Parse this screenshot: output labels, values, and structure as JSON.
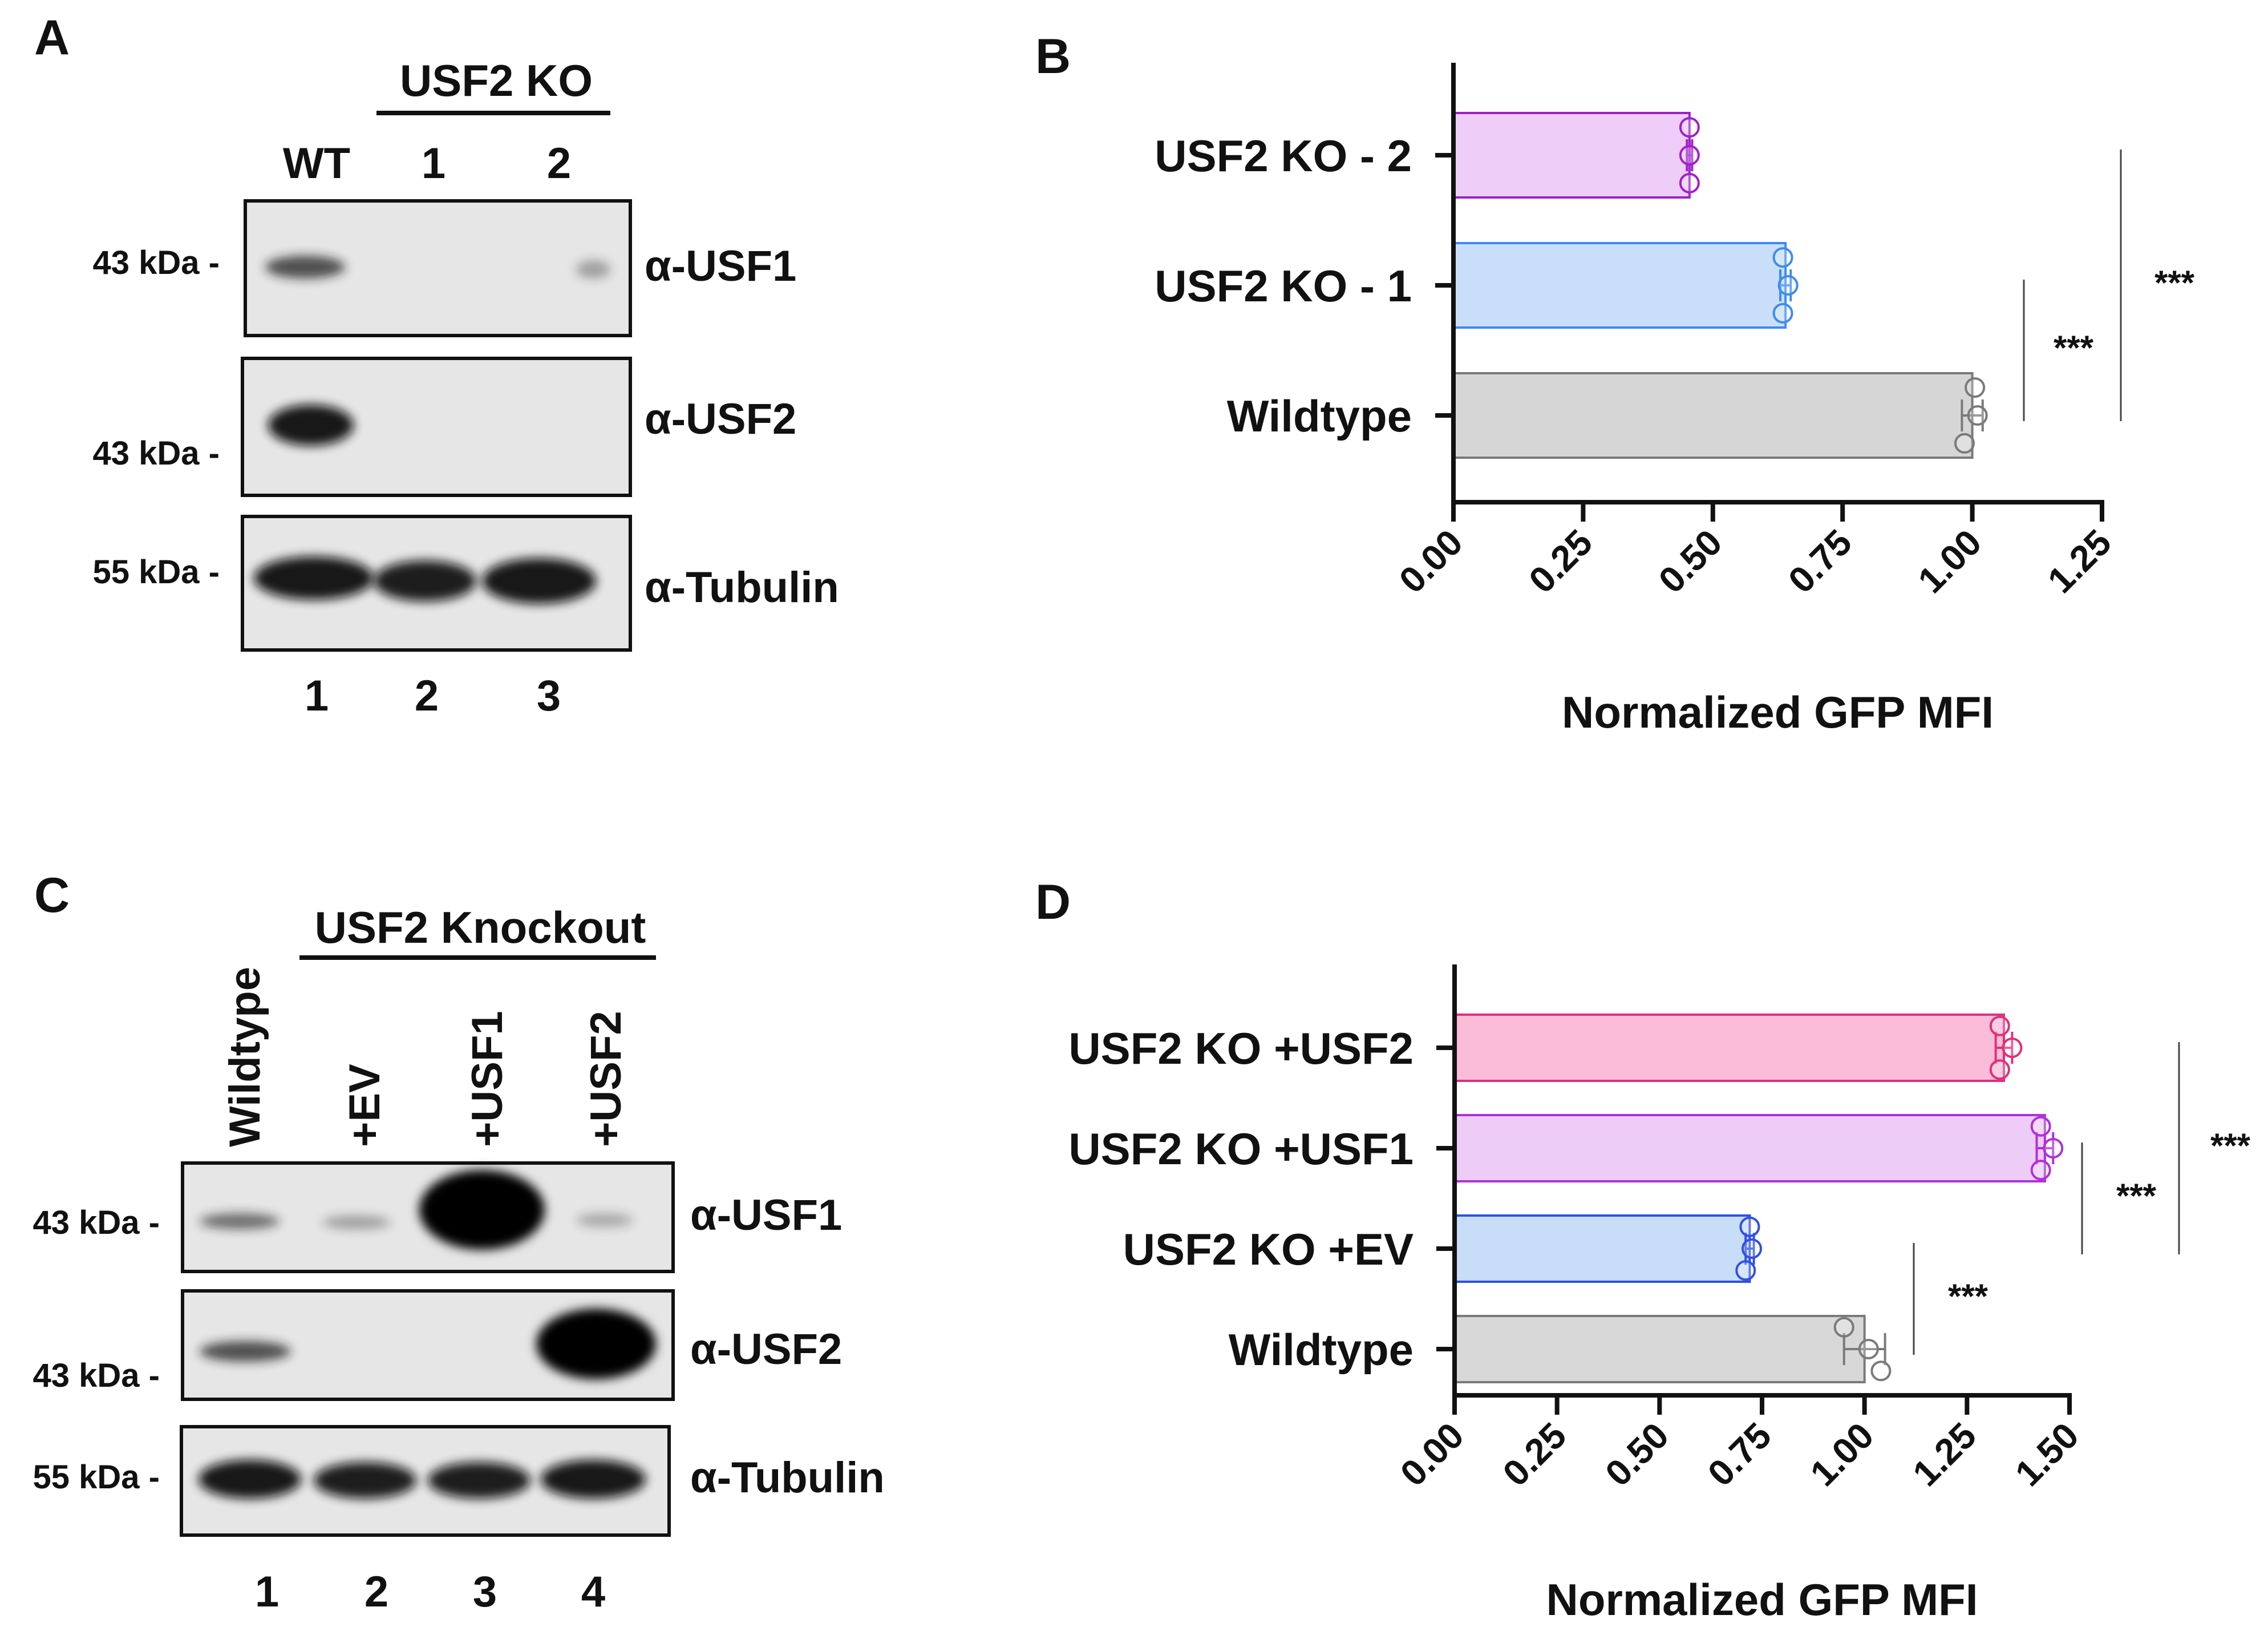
{
  "panel_a": {
    "letter": "A",
    "group_header": "USF2 KO",
    "column_labels": [
      "WT",
      "1",
      "2"
    ],
    "lane_numbers": [
      "1",
      "2",
      "3"
    ],
    "blots": [
      {
        "antibody": "α-USF1",
        "marker": "43 kDa -",
        "band_intensity": [
          0.55,
          0.0,
          0.2
        ]
      },
      {
        "antibody": "α-USF2",
        "marker": "43 kDa -",
        "band_intensity": [
          1.0,
          0.0,
          0.0
        ]
      },
      {
        "antibody": "α-Tubulin",
        "marker": "55 kDa -",
        "band_intensity": [
          1.0,
          0.9,
          1.0
        ]
      }
    ]
  },
  "panel_c": {
    "letter": "C",
    "group_header": "USF2 Knockout",
    "column_labels": [
      "Wildtype",
      "+EV",
      "+USF1",
      "+USF2"
    ],
    "lane_numbers": [
      "1",
      "2",
      "3",
      "4"
    ],
    "blots": [
      {
        "antibody": "α-USF1",
        "marker": "43 kDa -",
        "band_intensity": [
          0.5,
          0.3,
          1.0,
          0.2
        ]
      },
      {
        "antibody": "α-USF2",
        "marker": "43 kDa -",
        "band_intensity": [
          0.6,
          0.0,
          0.0,
          1.0
        ]
      },
      {
        "antibody": "α-Tubulin",
        "marker": "55 kDa -",
        "band_intensity": [
          1.0,
          1.0,
          1.0,
          1.0
        ]
      }
    ]
  },
  "chart_data": [
    {
      "panel": "B",
      "type": "bar",
      "orientation": "horizontal",
      "categories": [
        "USF2 KO - 2",
        "USF2 KO - 1",
        "Wildtype"
      ],
      "values": [
        0.455,
        0.64,
        1.0
      ],
      "errors": [
        0.005,
        0.01,
        0.02
      ],
      "points": [
        [
          0.455,
          0.455,
          0.455
        ],
        [
          0.635,
          0.645,
          0.635
        ],
        [
          1.005,
          1.01,
          0.985
        ]
      ],
      "colors": [
        "#a020c8",
        "#3d8bf0",
        "#7a7a7a"
      ],
      "fills": [
        "#eecdf8",
        "#c9dff9",
        "#d6d6d6"
      ],
      "xlabel": "Normalized GFP MFI",
      "xlim": [
        0,
        1.25
      ],
      "xticks": [
        "0.00",
        "0.25",
        "0.50",
        "0.75",
        "1.00",
        "1.25"
      ],
      "significance": [
        {
          "from": "USF2 KO - 1",
          "to": "Wildtype",
          "label": "***"
        },
        {
          "from": "USF2 KO - 2",
          "to": "Wildtype",
          "label": "***"
        }
      ]
    },
    {
      "panel": "D",
      "type": "bar",
      "orientation": "horizontal",
      "categories": [
        "USF2 KO +USF2",
        "USF2 KO +USF1",
        "USF2 KO +EV",
        "Wildtype"
      ],
      "values": [
        1.34,
        1.44,
        0.72,
        1.0
      ],
      "errors": [
        0.02,
        0.02,
        0.01,
        0.05
      ],
      "points": [
        [
          1.33,
          1.36,
          1.33
        ],
        [
          1.43,
          1.46,
          1.43
        ],
        [
          0.72,
          0.725,
          0.71
        ],
        [
          0.95,
          1.01,
          1.04
        ]
      ],
      "colors": [
        "#e0307a",
        "#b030d8",
        "#3050e0",
        "#7a7a7a"
      ],
      "fills": [
        "#fabcd8",
        "#edcdf8",
        "#c8ddf8",
        "#d8d8d8"
      ],
      "xlabel": "Normalized GFP MFI",
      "xlim": [
        0,
        1.5
      ],
      "xticks": [
        "0.00",
        "0.25",
        "0.50",
        "0.75",
        "1.00",
        "1.25",
        "1.50"
      ],
      "significance": [
        {
          "from": "USF2 KO +EV",
          "to": "Wildtype",
          "label": "***"
        },
        {
          "from": "USF2 KO +USF1",
          "to": "USF2 KO +EV",
          "label": "***"
        },
        {
          "from": "USF2 KO +USF2",
          "to": "USF2 KO +EV",
          "label": "***"
        }
      ]
    }
  ],
  "panel_letters": {
    "b": "B",
    "d": "D"
  }
}
